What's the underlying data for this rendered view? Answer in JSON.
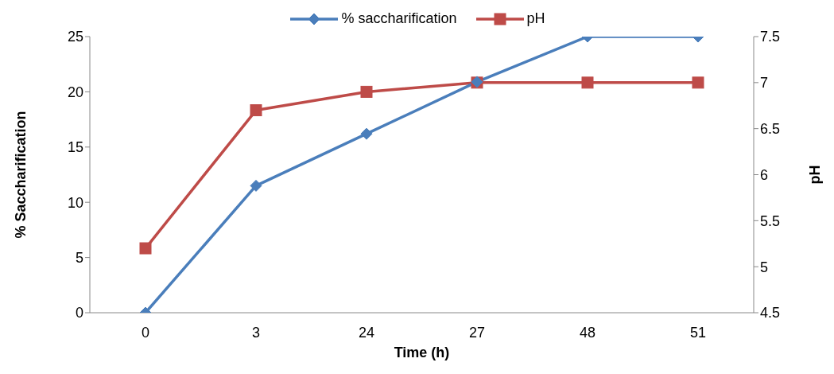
{
  "chart_data": {
    "type": "line",
    "xlabel": "Time (h)",
    "ylabel": "% Saccharification",
    "y2label": "pH",
    "categories": [
      "0",
      "3",
      "24",
      "27",
      "48",
      "51"
    ],
    "series": [
      {
        "name": "% saccharification",
        "color": "#4a7ebb",
        "marker": "diamond",
        "values": [
          0,
          11.5,
          16.2,
          20.9,
          25,
          25
        ]
      },
      {
        "name": "pH",
        "color": "#be4b48",
        "marker": "square",
        "axis": "y2",
        "values": [
          5.2,
          6.7,
          6.9,
          7.0,
          7.0,
          7.0
        ]
      }
    ],
    "ylim": [
      0,
      25
    ],
    "yticks": [
      0,
      5,
      10,
      15,
      20,
      25
    ],
    "y2lim": [
      4.5,
      7.5
    ],
    "y2ticks": [
      4.5,
      5,
      5.5,
      6,
      6.5,
      7,
      7.5
    ],
    "grid": false,
    "legend": "top",
    "line_style": "solid"
  }
}
